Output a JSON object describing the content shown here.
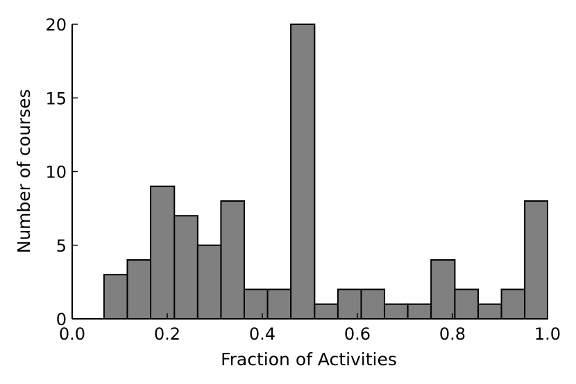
{
  "chart_data": {
    "type": "bar",
    "subtype": "histogram",
    "title": "",
    "xlabel": "Fraction of Activities",
    "ylabel": "Number of courses",
    "xlim": [
      0.0,
      1.0
    ],
    "ylim": [
      0,
      20
    ],
    "xticks": [
      "0.0",
      "0.2",
      "0.4",
      "0.6",
      "0.8",
      "1.0"
    ],
    "yticks": [
      "0",
      "5",
      "10",
      "15",
      "20"
    ],
    "bin_edges": [
      0.067,
      0.116,
      0.165,
      0.215,
      0.264,
      0.313,
      0.362,
      0.411,
      0.46,
      0.51,
      0.559,
      0.608,
      0.657,
      0.706,
      0.755,
      0.805,
      0.854,
      0.903,
      0.952,
      1.0
    ],
    "values": [
      3,
      4,
      9,
      7,
      5,
      8,
      2,
      2,
      20,
      1,
      2,
      2,
      1,
      1,
      4,
      2,
      1,
      2,
      8
    ],
    "bar_color": "#808080",
    "edge_color": "#000000",
    "grid": false
  }
}
